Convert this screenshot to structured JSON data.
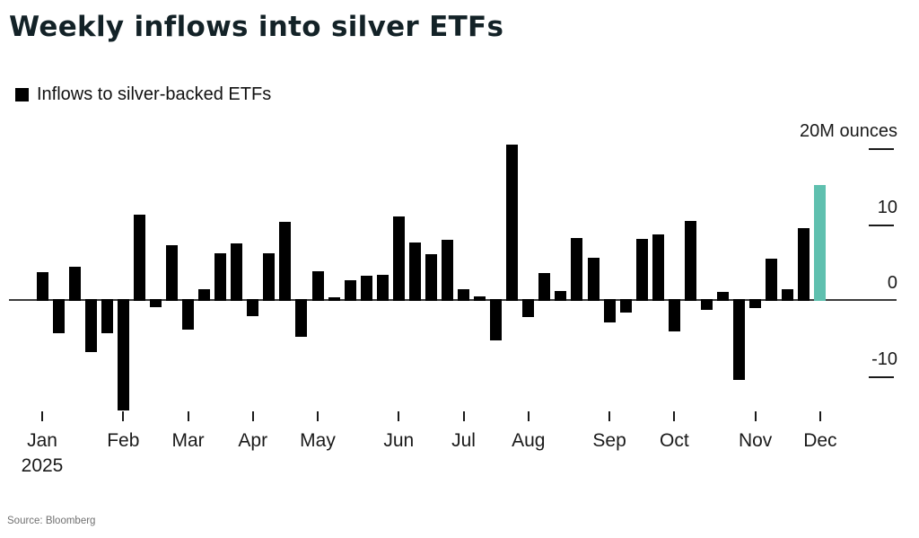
{
  "header": {
    "title": "Weekly inflows into silver ETFs"
  },
  "legend": {
    "label": "Inflows to silver-backed ETFs",
    "swatch_color": "#000000"
  },
  "footer": {
    "source": "Source: Bloomberg"
  },
  "chart_data": {
    "type": "bar",
    "title": "Weekly inflows into silver ETFs",
    "series_name": "Inflows to silver-backed ETFs",
    "x_unit": "week",
    "x_year": "2025",
    "x_months": [
      "Jan",
      "Feb",
      "Mar",
      "Apr",
      "May",
      "Jun",
      "Jul",
      "Aug",
      "Sep",
      "Oct",
      "Nov",
      "Dec"
    ],
    "month_tick_week_index": [
      0,
      5,
      9,
      13,
      17,
      22,
      26,
      30,
      35,
      39,
      44,
      48
    ],
    "values": [
      3.7,
      -4.4,
      4.4,
      -6.9,
      -4.4,
      -14.5,
      11.2,
      -1.0,
      7.2,
      -3.9,
      1.4,
      6.2,
      7.4,
      -2.1,
      6.2,
      10.3,
      -4.8,
      3.8,
      0.3,
      2.6,
      3.2,
      3.3,
      11.0,
      7.6,
      6.0,
      7.9,
      1.4,
      0.5,
      -5.3,
      20.5,
      -2.3,
      3.6,
      1.2,
      8.2,
      5.6,
      -3.0,
      -1.7,
      8.1,
      8.6,
      -4.1,
      10.4,
      -1.3,
      1.1,
      -10.5,
      -1.1,
      5.5,
      1.4,
      9.5,
      15.2
    ],
    "unit": "M ounces",
    "highlight_index": 48,
    "bar_color": "#000000",
    "highlight_color": "#5FC0AF",
    "axis_color": "#3d3d3d",
    "y_ticks": [
      {
        "value": 20,
        "label": "20M ounces",
        "dash": true
      },
      {
        "value": 10,
        "label": "10",
        "dash": true
      },
      {
        "value": 0,
        "label": "0",
        "dash": false
      },
      {
        "value": -10,
        "label": "-10",
        "dash": true
      }
    ],
    "ylim": [
      -16,
      22
    ],
    "grid": false,
    "legend_position": "top-left"
  }
}
